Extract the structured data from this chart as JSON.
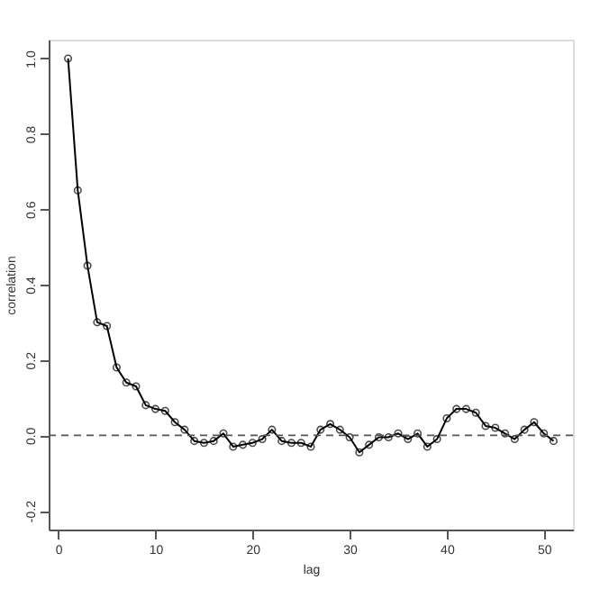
{
  "chart_data": {
    "type": "line",
    "xlabel": "lag",
    "ylabel": "correlation",
    "marker": "circle",
    "line_style": "solid",
    "grid": false,
    "x": [
      1,
      2,
      3,
      4,
      5,
      6,
      7,
      8,
      9,
      10,
      11,
      12,
      13,
      14,
      15,
      16,
      17,
      18,
      19,
      20,
      21,
      22,
      23,
      24,
      25,
      26,
      27,
      28,
      29,
      30,
      31,
      32,
      33,
      34,
      35,
      36,
      37,
      38,
      39,
      40,
      41,
      42,
      43,
      44,
      45,
      46,
      47,
      48,
      49,
      50,
      51
    ],
    "series": [
      {
        "color": "#000000",
        "values": [
          1.0,
          0.65,
          0.45,
          0.3,
          0.29,
          0.18,
          0.14,
          0.13,
          0.08,
          0.07,
          0.065,
          0.035,
          0.015,
          -0.015,
          -0.02,
          -0.015,
          0.005,
          -0.03,
          -0.025,
          -0.02,
          -0.01,
          0.015,
          -0.015,
          -0.02,
          -0.02,
          -0.03,
          0.015,
          0.03,
          0.015,
          -0.005,
          -0.045,
          -0.025,
          -0.005,
          -0.005,
          0.005,
          -0.01,
          0.005,
          -0.03,
          -0.01,
          0.045,
          0.07,
          0.07,
          0.06,
          0.025,
          0.02,
          0.005,
          -0.01,
          0.015,
          0.035,
          0.005,
          -0.015
        ]
      }
    ],
    "xlim": [
      -1,
      53
    ],
    "xticks": [
      0,
      10,
      20,
      30,
      40,
      50
    ],
    "ylim": [
      -0.25,
      1.05
    ],
    "yticks": [
      {
        "value": -0.2,
        "label": "-0.2"
      },
      {
        "value": 0.0,
        "label": "0.0"
      },
      {
        "value": 0.2,
        "label": "0.2"
      },
      {
        "value": 0.4,
        "label": "0.4"
      },
      {
        "value": 0.6,
        "label": "0.6"
      },
      {
        "value": 0.8,
        "label": "0.8"
      },
      {
        "value": 1.0,
        "label": "1.0"
      }
    ],
    "ref_lines": [
      {
        "axis": "y",
        "value": 0,
        "line_style": "dashed",
        "color": "#555555"
      }
    ]
  }
}
